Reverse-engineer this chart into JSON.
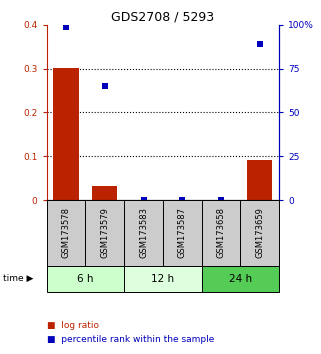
{
  "title": "GDS2708 / 5293",
  "samples": [
    "GSM173578",
    "GSM173579",
    "GSM173583",
    "GSM173587",
    "GSM173658",
    "GSM173659"
  ],
  "log_ratio": [
    0.302,
    0.032,
    0.0,
    0.0,
    0.0,
    0.092
  ],
  "percentile_rank": [
    98.5,
    65.0,
    0.0,
    0.0,
    0.0,
    89.0
  ],
  "time_groups": [
    {
      "label": "6 h",
      "start": 0,
      "end": 2,
      "color": "#ccffcc"
    },
    {
      "label": "12 h",
      "start": 2,
      "end": 4,
      "color": "#ddffdd"
    },
    {
      "label": "24 h",
      "start": 4,
      "end": 6,
      "color": "#55cc55"
    }
  ],
  "ylim_left": [
    0,
    0.4
  ],
  "ylim_right": [
    0,
    100
  ],
  "yticks_left": [
    0,
    0.1,
    0.2,
    0.3,
    0.4
  ],
  "yticks_right": [
    0,
    25,
    50,
    75,
    100
  ],
  "ytick_labels_left": [
    "0",
    "0.1",
    "0.2",
    "0.3",
    "0.4"
  ],
  "ytick_labels_right": [
    "0",
    "25",
    "50",
    "75",
    "100%"
  ],
  "bar_color": "#bb2200",
  "scatter_color": "#0000bb",
  "legend_log_ratio": "log ratio",
  "legend_percentile": "percentile rank within the sample",
  "sample_box_color": "#cccccc",
  "background_color": "#ffffff"
}
